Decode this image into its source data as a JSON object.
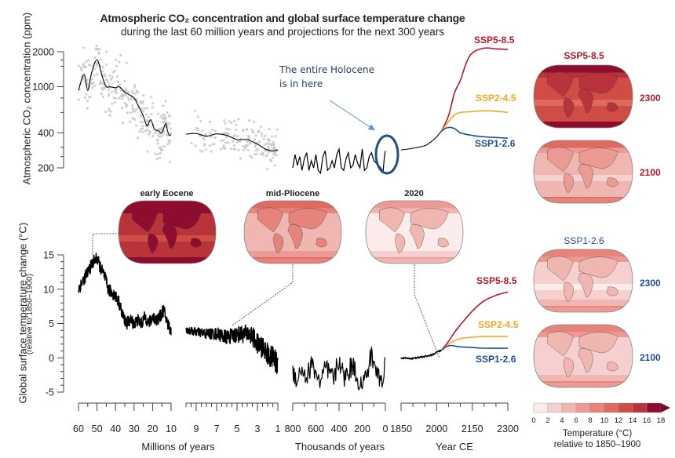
{
  "title": {
    "line1": "Atmospheric CO₂ concentration and global surface temperature change",
    "line2": "during the last 60 million years and projections for the next 300 years"
  },
  "annotation": {
    "line1": "The entire Holocene",
    "line2": "is in here"
  },
  "colors": {
    "ssp585": "#b2182b",
    "ssp245": "#f5a623",
    "ssp126": "#1f4e8c",
    "scatter": "#c9c9c9",
    "line": "#000000",
    "ellipse": "#1f4e8c",
    "arrow": "#5b8fd6"
  },
  "maps": {
    "paleo": [
      {
        "label": "early Eocene",
        "warmth": 0.85
      },
      {
        "label": "mid-Pliocene",
        "warmth": 0.3
      },
      {
        "label": "2020",
        "warmth": 0.06
      }
    ],
    "ssp585_title": "SSP5-8.5",
    "ssp126_title": "SSP1-2.6",
    "ssp585": [
      {
        "year": "2300",
        "warmth": 0.75
      },
      {
        "year": "2100",
        "warmth": 0.25
      }
    ],
    "ssp126": [
      {
        "year": "2300",
        "warmth": 0.14
      },
      {
        "year": "2100",
        "warmth": 0.15
      }
    ]
  },
  "colorbar": {
    "ticks": [
      "0",
      "2",
      "4",
      "6",
      "8",
      "10",
      "12",
      "14",
      "16",
      "18"
    ],
    "colors": [
      "#fbeceb",
      "#f6d0ce",
      "#f0b6b2",
      "#eb9b94",
      "#e6837a",
      "#df6a5e",
      "#cf4d44",
      "#b8333a",
      "#8e0d2f"
    ],
    "title_line1": "Temperature (°C)",
    "title_line2": "relative to 1850–1900"
  },
  "chart_data": [
    {
      "type": "line",
      "title": "Atmospheric CO₂ concentration",
      "ylabel": "Atmospheric CO₂ concentration (ppm)",
      "yscale": "log",
      "ylim": [
        180,
        2400
      ],
      "yticks": [
        "2000",
        "1000",
        "400",
        "200"
      ],
      "ytick_values": [
        2000,
        1000,
        400,
        200
      ],
      "segments": [
        {
          "name": "Millions of years (60-10)",
          "x": [
            60,
            57,
            55,
            53,
            50,
            47,
            45,
            43,
            40,
            38,
            35,
            33,
            30,
            28,
            25,
            23,
            21,
            19,
            17,
            15,
            13,
            12,
            11,
            10
          ],
          "y": [
            930,
            1280,
            930,
            1300,
            1700,
            1200,
            1000,
            1000,
            980,
            1000,
            900,
            860,
            800,
            700,
            560,
            460,
            520,
            430,
            420,
            400,
            480,
            420,
            380,
            390
          ]
        },
        {
          "name": "Millions of years (10-1)",
          "x": [
            10,
            9,
            8,
            7,
            6,
            5,
            4,
            3,
            2.5,
            2,
            1.5,
            1
          ],
          "y": [
            390,
            395,
            375,
            392,
            380,
            350,
            350,
            320,
            300,
            285,
            280,
            285
          ]
        },
        {
          "name": "Thousands of years (800-0)",
          "x": [
            800,
            780,
            760,
            740,
            720,
            700,
            680,
            660,
            640,
            620,
            600,
            580,
            560,
            540,
            520,
            500,
            480,
            460,
            440,
            420,
            400,
            380,
            360,
            340,
            320,
            300,
            280,
            260,
            240,
            220,
            200,
            180,
            160,
            140,
            120,
            100,
            80,
            60,
            40,
            20,
            10,
            5,
            0
          ],
          "y": [
            200,
            260,
            210,
            250,
            190,
            240,
            270,
            190,
            230,
            200,
            260,
            190,
            180,
            250,
            280,
            190,
            200,
            230,
            200,
            260,
            290,
            200,
            190,
            240,
            270,
            200,
            210,
            260,
            220,
            200,
            290,
            190,
            200,
            250,
            270,
            230,
            220,
            210,
            200,
            185,
            240,
            265,
            280
          ]
        },
        {
          "name": "Year CE (1850-2020)",
          "x": [
            1850,
            1900,
            1950,
            1980,
            2000,
            2020
          ],
          "y": [
            285,
            295,
            310,
            340,
            370,
            415
          ]
        }
      ],
      "scenarios": [
        {
          "name": "SSP5-8.5",
          "x": [
            2020,
            2050,
            2075,
            2100,
            2125,
            2150,
            2200,
            2250,
            2300
          ],
          "y": [
            415,
            560,
            880,
            1135,
            1600,
            1950,
            2150,
            2120,
            2100
          ]
        },
        {
          "name": "SSP2-4.5",
          "x": [
            2020,
            2050,
            2075,
            2100,
            2150,
            2200,
            2250,
            2300
          ],
          "y": [
            415,
            500,
            570,
            600,
            610,
            620,
            615,
            600
          ]
        },
        {
          "name": "SSP1-2.6",
          "x": [
            2020,
            2040,
            2060,
            2080,
            2100,
            2150,
            2200,
            2250,
            2300
          ],
          "y": [
            415,
            440,
            445,
            430,
            400,
            380,
            370,
            365,
            360
          ]
        }
      ]
    },
    {
      "type": "line",
      "title": "Global surface temperature change",
      "ylabel": "Global surface temperature change (°C)",
      "ylabel_sub": "(relative to 1850–1900)",
      "ylim": [
        -5,
        15
      ],
      "yticks": [
        "15",
        "10",
        "5",
        "0",
        "-5"
      ],
      "ytick_values": [
        15,
        10,
        5,
        0,
        -5
      ],
      "segments": [
        {
          "name": "Millions of years (60-10)",
          "x": [
            60,
            58,
            56,
            54,
            52,
            50,
            48,
            46,
            44,
            42,
            40,
            38,
            36,
            34,
            32,
            30,
            28,
            26,
            24,
            22,
            20,
            18,
            16,
            14,
            12,
            10
          ],
          "y": [
            10,
            11,
            12,
            13,
            14,
            14.5,
            13,
            12,
            10,
            9.5,
            9,
            8,
            6,
            5,
            5.5,
            5,
            5.5,
            5,
            6,
            5,
            6,
            5.5,
            6,
            7,
            5,
            4
          ]
        },
        {
          "name": "Millions of years (10-1)",
          "x": [
            10,
            9,
            8,
            7,
            6,
            5,
            4,
            3.5,
            3,
            2.5,
            2,
            1.5,
            1
          ],
          "y": [
            4,
            3.8,
            3.5,
            3.5,
            3,
            3.4,
            3.5,
            3.2,
            2,
            1.5,
            0.5,
            0,
            -1
          ]
        },
        {
          "name": "Thousands of years (800-0)",
          "x": [
            800,
            760,
            720,
            680,
            640,
            600,
            560,
            520,
            480,
            440,
            400,
            360,
            320,
            280,
            240,
            200,
            160,
            120,
            80,
            40,
            20,
            0
          ],
          "y": [
            -2,
            -3,
            -1.5,
            -3,
            -1,
            -2,
            -4,
            -1.5,
            -2.5,
            -3,
            0,
            -3,
            -2,
            -1,
            -3,
            -4,
            -2.5,
            0.5,
            -2,
            -3,
            -4,
            0
          ]
        },
        {
          "name": "Year CE (1850-2020)",
          "x": [
            1850,
            1900,
            1950,
            1980,
            2000,
            2020
          ],
          "y": [
            0,
            -0.1,
            0.2,
            0.4,
            0.8,
            1.1
          ]
        }
      ],
      "scenarios": [
        {
          "name": "SSP5-8.5",
          "x": [
            2020,
            2050,
            2075,
            2100,
            2150,
            2200,
            2250,
            2300
          ],
          "y": [
            1.1,
            2.4,
            3.7,
            4.8,
            6.8,
            8.3,
            9.1,
            9.6
          ]
        },
        {
          "name": "SSP2-4.5",
          "x": [
            2020,
            2050,
            2075,
            2100,
            2150,
            2200,
            2250,
            2300
          ],
          "y": [
            1.1,
            2.0,
            2.5,
            2.8,
            3.0,
            3.1,
            3.1,
            3.1
          ]
        },
        {
          "name": "SSP1-2.6",
          "x": [
            2020,
            2040,
            2060,
            2080,
            2100,
            2150,
            2200,
            2300
          ],
          "y": [
            1.1,
            1.6,
            1.8,
            1.7,
            1.6,
            1.5,
            1.4,
            1.4
          ]
        }
      ]
    }
  ],
  "x_axes": [
    {
      "name": "Millions of years",
      "range": [
        60,
        10
      ],
      "ticks": [
        "60",
        "50",
        "40",
        "30",
        "20",
        "10"
      ],
      "tick_values": [
        60,
        50,
        40,
        30,
        20,
        10
      ],
      "label": "Millions of years"
    },
    {
      "name": "Millions of years 2",
      "range": [
        10,
        1
      ],
      "ticks": [
        "9",
        "7",
        "5",
        "3",
        "1"
      ],
      "tick_values": [
        9,
        7,
        5,
        3,
        1
      ],
      "label": ""
    },
    {
      "name": "Thousands of years",
      "range": [
        800,
        0
      ],
      "ticks": [
        "800",
        "600",
        "400",
        "200",
        "0"
      ],
      "tick_values": [
        800,
        600,
        400,
        200,
        0
      ],
      "label": "Thousands of years"
    },
    {
      "name": "Year CE",
      "range": [
        1850,
        2300
      ],
      "ticks": [
        "1850",
        "2000",
        "2150",
        "2300"
      ],
      "tick_values": [
        1850,
        2000,
        2150,
        2300
      ],
      "label": "Year CE"
    }
  ]
}
